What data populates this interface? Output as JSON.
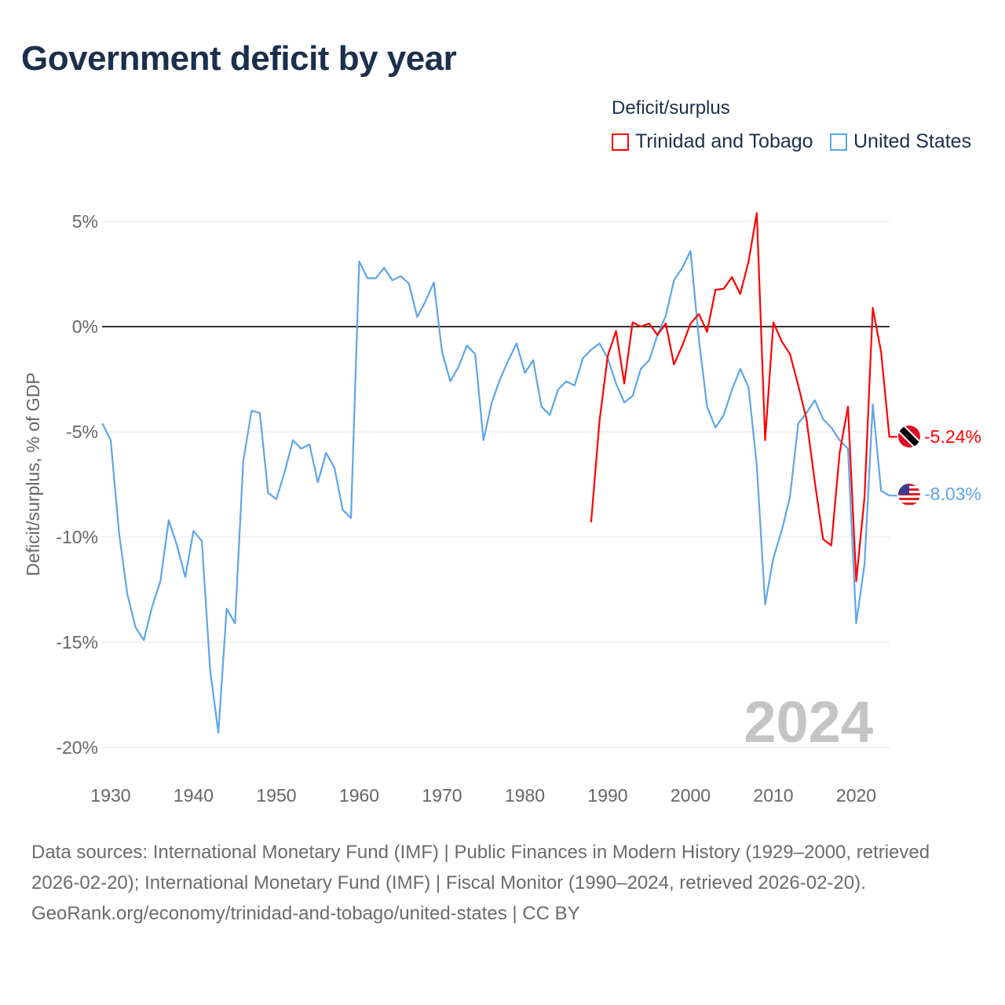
{
  "title": "Government deficit by year",
  "legend": {
    "title": "Deficit/surplus",
    "items": [
      {
        "name": "Trinidad and Tobago",
        "color": "#ff0000"
      },
      {
        "name": "United States",
        "color": "#5ea5ea"
      }
    ]
  },
  "chart_data": {
    "type": "line",
    "title": "Government deficit by year",
    "xlabel": "",
    "ylabel": "Deficit/surplus, % of GDP",
    "xlim": [
      1929,
      2024
    ],
    "ylim": [
      -20,
      5
    ],
    "x_ticks": [
      1930,
      1940,
      1950,
      1960,
      1970,
      1980,
      1990,
      2000,
      2010,
      2020
    ],
    "y_ticks": [
      5,
      0,
      -5,
      -10,
      -15,
      -20
    ],
    "y_tick_labels": [
      "5%",
      "0%",
      "-5%",
      "-10%",
      "-15%",
      "-20%"
    ],
    "grid": true,
    "legend_position": "top-right",
    "year_watermark": "2024",
    "series": [
      {
        "name": "Trinidad and Tobago",
        "color": "#ff0000",
        "end_label": "-5.24%",
        "start_year": 1988,
        "values": [
          -9.3,
          -4.5,
          -1.4,
          -0.2,
          -2.7,
          0.2,
          0.0,
          0.15,
          -0.4,
          0.15,
          -1.8,
          -0.9,
          0.15,
          0.6,
          -0.25,
          1.75,
          1.8,
          2.35,
          1.55,
          3.1,
          5.4,
          -5.4,
          0.2,
          -0.7,
          -1.3,
          -2.8,
          -4.4,
          -7.4,
          -10.1,
          -10.4,
          -6.0,
          -3.8,
          -12.1,
          -8.1,
          0.9,
          -1.2,
          -5.24
        ]
      },
      {
        "name": "United States",
        "color": "#5ea5ea",
        "end_label": "-8.03%",
        "start_year": 1929,
        "values": [
          -4.6,
          -5.4,
          -9.8,
          -12.7,
          -14.3,
          -14.9,
          -13.3,
          -12.1,
          -9.2,
          -10.4,
          -11.9,
          -9.7,
          -10.2,
          -16.3,
          -19.3,
          -13.4,
          -14.1,
          -6.4,
          -4.0,
          -4.1,
          -7.9,
          -8.2,
          -6.9,
          -5.4,
          -5.8,
          -5.6,
          -7.4,
          -6.0,
          -6.7,
          -8.7,
          -9.1,
          3.1,
          2.3,
          2.3,
          2.8,
          2.2,
          2.4,
          2.05,
          0.45,
          1.2,
          2.1,
          -1.2,
          -2.6,
          -1.9,
          -0.9,
          -1.3,
          -5.4,
          -3.6,
          -2.5,
          -1.6,
          -0.8,
          -2.2,
          -1.6,
          -3.8,
          -4.2,
          -3.0,
          -2.6,
          -2.8,
          -1.5,
          -1.1,
          -0.8,
          -1.5,
          -2.7,
          -3.6,
          -3.3,
          -2.0,
          -1.6,
          -0.4,
          0.5,
          2.2,
          2.8,
          3.6,
          -0.6,
          -3.8,
          -4.8,
          -4.2,
          -3.0,
          -2.0,
          -2.9,
          -6.6,
          -13.2,
          -11.0,
          -9.7,
          -8.1,
          -4.6,
          -4.1,
          -3.5,
          -4.4,
          -4.8,
          -5.4,
          -5.8,
          -14.1,
          -11.3,
          -3.7,
          -7.8,
          -8.03
        ]
      }
    ]
  },
  "footer": {
    "sources": "Data sources: International Monetary Fund (IMF) | Public Finances in Modern History (1929–2000, retrieved 2026-02-20); International Monetary Fund (IMF) | Fiscal Monitor (1990–2024, retrieved 2026-02-20).",
    "credit": "GeoRank.org/economy/trinidad-and-tobago/united-states | CC BY"
  }
}
